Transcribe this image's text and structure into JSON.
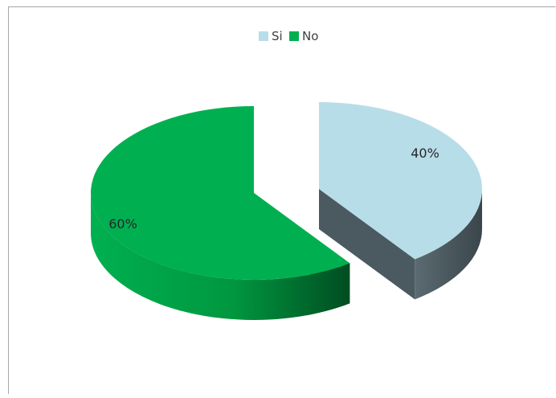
{
  "chart_data": {
    "type": "pie",
    "title": "",
    "three_d": true,
    "exploded": true,
    "legend_position": "top",
    "categories": [
      "Si",
      "No"
    ],
    "values": [
      40,
      60
    ],
    "data_labels": [
      "40%",
      "60%"
    ],
    "colors": {
      "Si": "#b7dde8",
      "No": "#00b050",
      "Si_side": "#4a5a60",
      "No_side": "#008a3c"
    }
  }
}
